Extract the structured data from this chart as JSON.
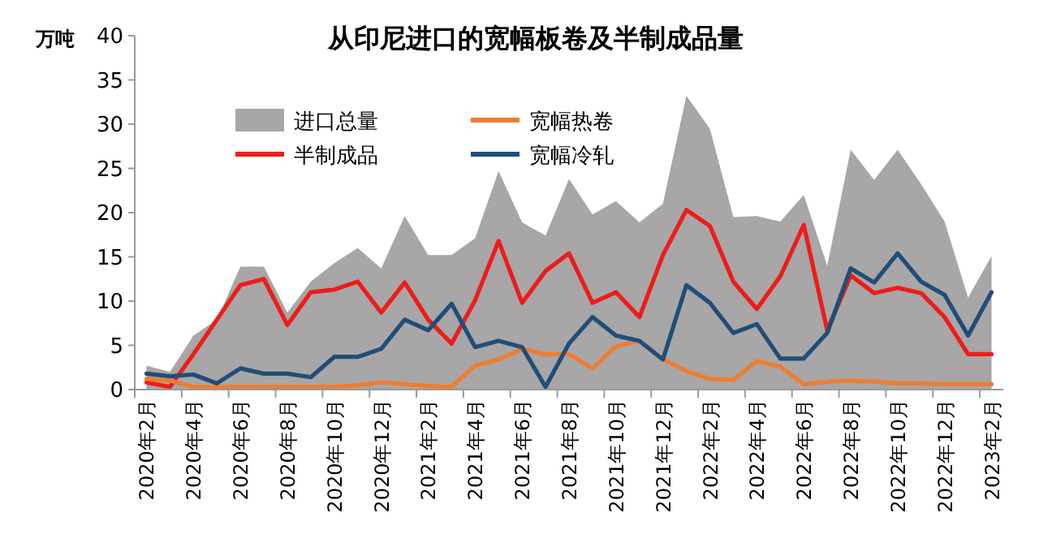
{
  "chart_data": {
    "type": "line",
    "title": "从印尼进口的宽幅板卷及半制成品量",
    "ylabel": "万吨",
    "categories": [
      "2020年2月",
      null,
      "2020年4月",
      null,
      "2020年6月",
      null,
      "2020年8月",
      null,
      "2020年10月",
      null,
      "2020年12月",
      null,
      "2021年2月",
      null,
      "2021年4月",
      null,
      "2021年6月",
      null,
      "2021年8月",
      null,
      "2021年10月",
      null,
      "2021年12月",
      null,
      "2022年2月",
      null,
      "2022年4月",
      null,
      "2022年6月",
      null,
      "2022年8月",
      null,
      "2022年10月",
      null,
      "2022年12月",
      null,
      "2023年2月"
    ],
    "series": [
      {
        "name": "进口总量",
        "type": "area",
        "color": "#a8a6a6",
        "values": [
          2.7,
          2.0,
          6.1,
          7.9,
          13.9,
          13.9,
          8.7,
          12.2,
          14.3,
          16,
          13.7,
          19.6,
          15.2,
          15.2,
          17.1,
          24.7,
          18.9,
          17.4,
          23.8,
          19.8,
          21.3,
          18.9,
          21,
          33.2,
          29.5,
          19.5,
          19.6,
          19,
          22,
          14,
          27.1,
          23.7,
          27.1,
          23.2,
          19,
          10.4,
          15.1
        ]
      },
      {
        "name": "半制成品",
        "color": "#ee1c1c",
        "values": [
          0.8,
          0.3,
          4,
          7.9,
          11.8,
          12.5,
          7.3,
          11,
          11.3,
          12.2,
          8.7,
          12.1,
          7.9,
          5.2,
          10.1,
          16.8,
          9.8,
          13.4,
          15.4,
          9.8,
          11,
          8.2,
          15.2,
          20.3,
          18.5,
          12.2,
          9.1,
          12.8,
          18.6,
          6.7,
          12.9,
          10.9,
          11.5,
          10.9,
          8.2,
          4,
          4
        ]
      },
      {
        "name": "宽幅热卷",
        "color": "#ed7d31",
        "values": [
          1.2,
          1,
          0.3,
          0.3,
          0.3,
          0.3,
          0.3,
          0.3,
          0.3,
          0.5,
          0.8,
          0.6,
          0.4,
          0.3,
          2.7,
          3.4,
          4.6,
          4,
          4,
          2.4,
          4.9,
          5.5,
          3.4,
          2.1,
          1.2,
          1.1,
          3.2,
          2.6,
          0.6,
          0.9,
          1,
          0.9,
          0.7,
          0.7,
          0.6,
          0.6,
          0.6
        ]
      },
      {
        "name": "宽幅冷轧",
        "color": "#1f4e79",
        "values": [
          1.8,
          1.5,
          1.7,
          0.7,
          2.4,
          1.8,
          1.8,
          1.4,
          3.7,
          3.7,
          4.6,
          7.9,
          6.7,
          9.7,
          4.8,
          5.5,
          4.8,
          0.3,
          5.2,
          8.2,
          6.1,
          5.5,
          3.4,
          11.8,
          9.8,
          6.4,
          7.4,
          3.5,
          3.5,
          6.4,
          13.7,
          12.1,
          15.4,
          12.2,
          10.7,
          6.1,
          11
        ]
      }
    ],
    "ylim": [
      0,
      40
    ],
    "yticks": [
      0,
      5,
      10,
      15,
      20,
      25,
      30,
      35,
      40
    ],
    "grid": false,
    "legend": "top",
    "marker": "none",
    "line_style": "solid"
  }
}
